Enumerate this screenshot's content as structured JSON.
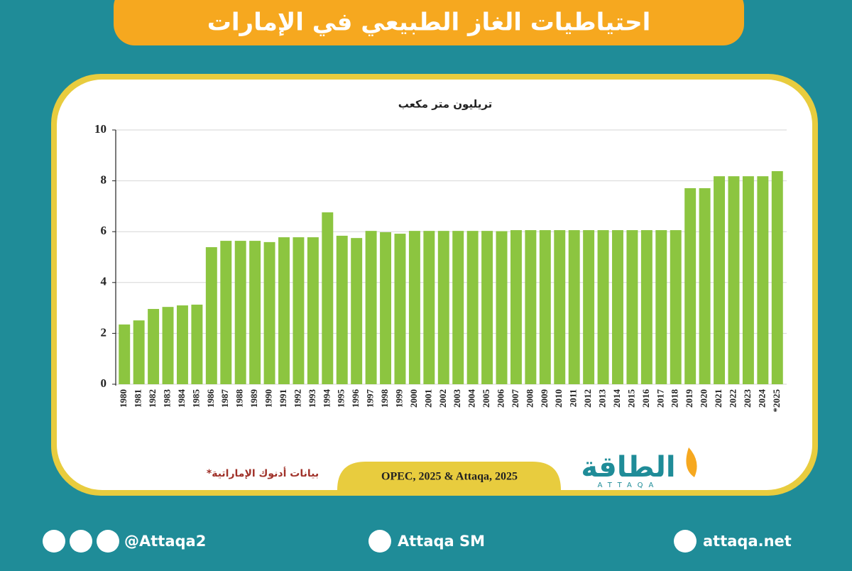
{
  "header": {
    "title": "احتياطيات الغاز الطبيعي في الإمارات"
  },
  "chart_data": {
    "type": "bar",
    "title": "تريليون متر مكعب",
    "categories": [
      "1980",
      "1981",
      "1982",
      "1983",
      "1984",
      "1985",
      "1986",
      "1987",
      "1988",
      "1989",
      "1990",
      "1991",
      "1992",
      "1993",
      "1994",
      "1995",
      "1996",
      "1997",
      "1998",
      "1999",
      "2000",
      "2001",
      "2002",
      "2003",
      "2004",
      "2005",
      "2006",
      "2007",
      "2008",
      "2009",
      "2010",
      "2011",
      "2012",
      "2013",
      "2014",
      "2015",
      "2016",
      "2017",
      "2018",
      "2019",
      "2020",
      "2021",
      "2022",
      "2023",
      "2024",
      "*2025"
    ],
    "values": [
      2.35,
      2.51,
      2.96,
      3.04,
      3.1,
      3.13,
      5.39,
      5.64,
      5.64,
      5.64,
      5.59,
      5.78,
      5.78,
      5.78,
      6.76,
      5.84,
      5.75,
      6.03,
      5.98,
      5.92,
      6.03,
      6.03,
      6.03,
      6.03,
      6.03,
      6.03,
      6.02,
      6.06,
      6.06,
      6.06,
      6.06,
      6.06,
      6.06,
      6.06,
      6.06,
      6.06,
      6.06,
      6.06,
      6.06,
      7.71,
      7.71,
      8.18,
      8.18,
      8.18,
      8.18,
      8.38
    ],
    "color": "#8cc540",
    "ylim": [
      0,
      10
    ],
    "yticks": [
      0,
      2,
      4,
      6,
      8,
      10
    ],
    "grid": true
  },
  "note": "*بيانات أدنوك الإماراتية",
  "source": "OPEC, 2025 & Attaqa, 2025",
  "logo": {
    "name": "الطاقة",
    "latin": "ATTAQA"
  },
  "footer": {
    "social": "@Attaqa2",
    "youtube": "Attaqa SM",
    "website": "attaqa.net"
  }
}
